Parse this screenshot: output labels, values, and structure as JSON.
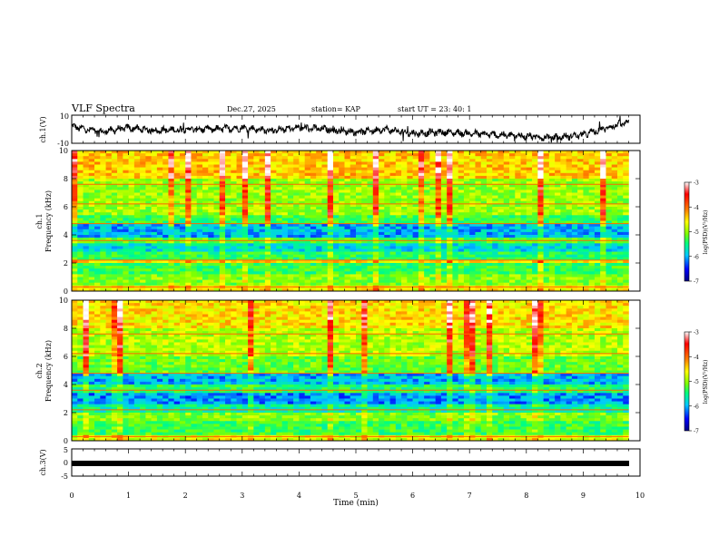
{
  "header": {
    "title": "VLF Spectra",
    "date": "Dec.27, 2025",
    "station": "station= KAP",
    "start": "start UT =  23: 40: 1"
  },
  "colors": {
    "colormap": [
      "#000080",
      "#0000ff",
      "#00c8ff",
      "#00ff80",
      "#80ff00",
      "#ffff00",
      "#ff8000",
      "#ff0000",
      "#ffffff"
    ]
  },
  "chart_data": [
    {
      "type": "line",
      "panel": "ch1-waveform",
      "ylabel": "ch.1(V)",
      "ylim": [
        -10,
        10
      ],
      "yticks": [
        "10",
        "-10"
      ],
      "xlim": [
        0,
        10
      ],
      "x": [
        0,
        0.5,
        1,
        1.5,
        2,
        2.5,
        3,
        3.5,
        4,
        4.5,
        5,
        5.5,
        6,
        6.5,
        7,
        7.5,
        8,
        8.5,
        9,
        9.5,
        9.8
      ],
      "values": [
        2,
        -2,
        1,
        -1,
        0,
        0,
        1,
        -1,
        1,
        0,
        -2,
        0,
        -3,
        -2,
        -3,
        -4,
        -5,
        -6,
        -4,
        2,
        5
      ]
    },
    {
      "type": "heatmap",
      "panel": "ch1-spectrogram",
      "ylabel": "ch.1\nFrequency (kHz)",
      "ylabel_lines": [
        "ch.1",
        "Frequency (kHz)"
      ],
      "xlim": [
        0,
        10
      ],
      "ylim": [
        0,
        10
      ],
      "yticks": [
        "0",
        "2",
        "4",
        "6",
        "8",
        "10"
      ],
      "colorbar": {
        "label": "log(PSD)(V²/Hz)",
        "ticks": [
          "-3",
          "-4",
          "-5",
          "-6",
          "-7"
        ],
        "range": [
          -7,
          -3
        ]
      },
      "bands": [
        {
          "f0": 0,
          "f1": 0.4,
          "level": -4.5
        },
        {
          "f0": 0.4,
          "f1": 1.2,
          "level": -5.0
        },
        {
          "f0": 1.2,
          "f1": 2.0,
          "level": -5.3
        },
        {
          "f0": 2.0,
          "f1": 2.3,
          "level": -4.4
        },
        {
          "f0": 2.3,
          "f1": 2.8,
          "level": -5.4
        },
        {
          "f0": 2.8,
          "f1": 3.4,
          "level": -5.8
        },
        {
          "f0": 3.4,
          "f1": 3.8,
          "level": -5.2
        },
        {
          "f0": 3.8,
          "f1": 4.8,
          "level": -6.0
        },
        {
          "f0": 4.8,
          "f1": 5.5,
          "level": -5.3
        },
        {
          "f0": 5.5,
          "f1": 8.0,
          "level": -4.9
        },
        {
          "f0": 8.0,
          "f1": 10,
          "level": -4.3
        }
      ]
    },
    {
      "type": "heatmap",
      "panel": "ch2-spectrogram",
      "ylabel": "ch.2\nFrequency (kHz)",
      "ylabel_lines": [
        "ch.2",
        "Frequency (kHz)"
      ],
      "xlim": [
        0,
        10
      ],
      "ylim": [
        0,
        10
      ],
      "yticks": [
        "0",
        "2",
        "4",
        "6",
        "8",
        "10"
      ],
      "colorbar": {
        "label": "log(PSD)(V²/Hz)",
        "ticks": [
          "-3",
          "-4",
          "-5",
          "-6",
          "-7"
        ],
        "range": [
          -7,
          -3
        ]
      },
      "bands": [
        {
          "f0": 0,
          "f1": 0.4,
          "level": -4.6
        },
        {
          "f0": 0.4,
          "f1": 1.5,
          "level": -5.3
        },
        {
          "f0": 1.5,
          "f1": 2.0,
          "level": -5.0
        },
        {
          "f0": 2.0,
          "f1": 2.6,
          "level": -5.6
        },
        {
          "f0": 2.6,
          "f1": 3.4,
          "level": -6.1
        },
        {
          "f0": 3.4,
          "f1": 4.0,
          "level": -5.4
        },
        {
          "f0": 4.0,
          "f1": 4.8,
          "level": -6.0
        },
        {
          "f0": 4.8,
          "f1": 6.0,
          "level": -5.1
        },
        {
          "f0": 6.0,
          "f1": 8.0,
          "level": -4.8
        },
        {
          "f0": 8.0,
          "f1": 10,
          "level": -4.4
        }
      ]
    },
    {
      "type": "line",
      "panel": "ch3-waveform",
      "ylabel": "ch.3(V)",
      "ylim": [
        -5,
        5
      ],
      "yticks": [
        "5",
        "0",
        "-5"
      ],
      "xlim": [
        0,
        10
      ],
      "x": [
        0,
        9.8
      ],
      "values": [
        0,
        0
      ]
    }
  ],
  "xaxis": {
    "label": "Time (min)",
    "ticks": [
      "0",
      "1",
      "2",
      "3",
      "4",
      "5",
      "6",
      "7",
      "8",
      "9",
      "10"
    ]
  }
}
